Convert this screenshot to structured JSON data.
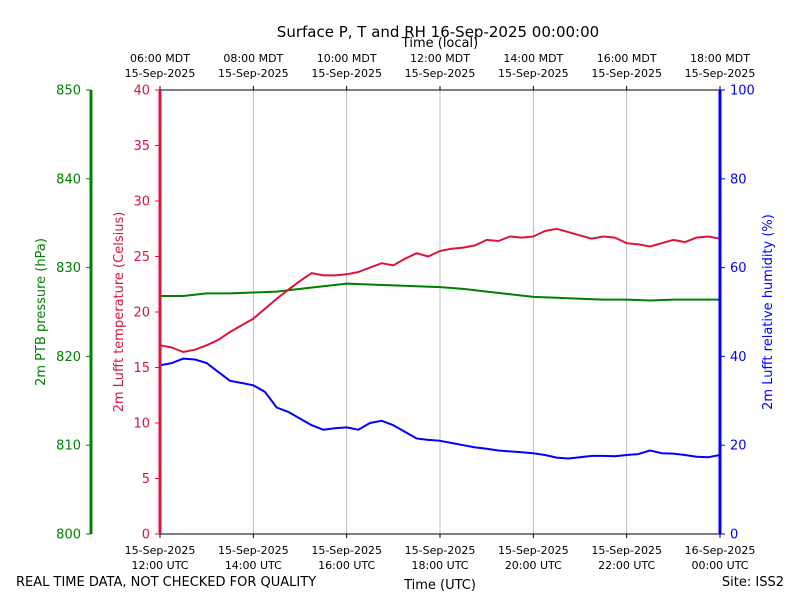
{
  "chart_data": {
    "type": "line",
    "title": "Surface P, T and RH 16-Sep-2025 00:00:00",
    "top_axis_label": "Time (local)",
    "xlabel": "Time (UTC)",
    "x_unit": "hours UTC from 15-Sep-2025 12:00",
    "xlim": [
      0,
      12
    ],
    "bottom_ticks": [
      {
        "x": 0,
        "line1": "15-Sep-2025",
        "line2": "12:00 UTC"
      },
      {
        "x": 2,
        "line1": "15-Sep-2025",
        "line2": "14:00 UTC"
      },
      {
        "x": 4,
        "line1": "15-Sep-2025",
        "line2": "16:00 UTC"
      },
      {
        "x": 6,
        "line1": "15-Sep-2025",
        "line2": "18:00 UTC"
      },
      {
        "x": 8,
        "line1": "15-Sep-2025",
        "line2": "20:00 UTC"
      },
      {
        "x": 10,
        "line1": "15-Sep-2025",
        "line2": "22:00 UTC"
      },
      {
        "x": 12,
        "line1": "16-Sep-2025",
        "line2": "00:00 UTC"
      }
    ],
    "top_ticks": [
      {
        "x": 0,
        "line1": "06:00 MDT",
        "line2": "15-Sep-2025"
      },
      {
        "x": 2,
        "line1": "08:00 MDT",
        "line2": "15-Sep-2025"
      },
      {
        "x": 4,
        "line1": "10:00 MDT",
        "line2": "15-Sep-2025"
      },
      {
        "x": 6,
        "line1": "12:00 MDT",
        "line2": "15-Sep-2025"
      },
      {
        "x": 8,
        "line1": "14:00 MDT",
        "line2": "15-Sep-2025"
      },
      {
        "x": 10,
        "line1": "16:00 MDT",
        "line2": "15-Sep-2025"
      },
      {
        "x": 12,
        "line1": "18:00 MDT",
        "line2": "15-Sep-2025"
      }
    ],
    "vertical_grid": true,
    "axes": {
      "pressure": {
        "label": "2m PTB pressure (hPa)",
        "ylim": [
          800,
          850
        ],
        "ticks": [
          800,
          810,
          820,
          830,
          840,
          850
        ],
        "color": "#008000",
        "position": "far-left"
      },
      "temperature": {
        "label": "2m Lufft temperature (Celsius)",
        "ylim": [
          0,
          40
        ],
        "ticks": [
          0,
          5,
          10,
          15,
          20,
          25,
          30,
          35,
          40
        ],
        "color": "#dc143c",
        "position": "left"
      },
      "humidity": {
        "label": "2m Lufft relative humidity (%)",
        "ylim": [
          0,
          100
        ],
        "ticks": [
          0,
          20,
          40,
          60,
          80,
          100
        ],
        "color": "#0000ff",
        "position": "right"
      }
    },
    "series": [
      {
        "name": "2m PTB pressure",
        "axis": "pressure",
        "color": "#008000",
        "x": [
          0,
          0.5,
          1,
          1.5,
          2,
          2.5,
          3,
          3.5,
          4,
          4.5,
          5,
          5.5,
          6,
          6.5,
          7,
          7.5,
          8,
          8.5,
          9,
          9.5,
          10,
          10.5,
          11,
          11.5,
          12
        ],
        "values": [
          826.8,
          826.8,
          827.1,
          827.1,
          827.2,
          827.3,
          827.6,
          827.9,
          828.2,
          828.1,
          828.0,
          827.9,
          827.8,
          827.6,
          827.3,
          827.0,
          826.7,
          826.6,
          826.5,
          826.4,
          826.4,
          826.3,
          826.4,
          826.4,
          826.4
        ]
      },
      {
        "name": "2m Lufft temperature",
        "axis": "temperature",
        "color": "#dc143c",
        "x": [
          0,
          0.25,
          0.5,
          0.75,
          1,
          1.25,
          1.5,
          1.75,
          2,
          2.25,
          2.5,
          2.75,
          3,
          3.25,
          3.5,
          3.75,
          4,
          4.25,
          4.5,
          4.75,
          5,
          5.25,
          5.5,
          5.75,
          6,
          6.25,
          6.5,
          6.75,
          7,
          7.25,
          7.5,
          7.75,
          8,
          8.25,
          8.5,
          8.75,
          9,
          9.25,
          9.5,
          9.75,
          10,
          10.25,
          10.5,
          10.75,
          11,
          11.25,
          11.5,
          11.75,
          12
        ],
        "values": [
          17.0,
          16.8,
          16.4,
          16.6,
          17.0,
          17.5,
          18.2,
          18.8,
          19.4,
          20.3,
          21.2,
          22.0,
          22.8,
          23.5,
          23.3,
          23.3,
          23.4,
          23.6,
          24.0,
          24.4,
          24.2,
          24.8,
          25.3,
          25.0,
          25.5,
          25.7,
          25.8,
          26.0,
          26.5,
          26.4,
          26.8,
          26.7,
          26.8,
          27.3,
          27.5,
          27.2,
          26.9,
          26.6,
          26.8,
          26.7,
          26.2,
          26.1,
          25.9,
          26.2,
          26.5,
          26.3,
          26.7,
          26.8,
          26.6
        ]
      },
      {
        "name": "2m Lufft relative humidity",
        "axis": "humidity",
        "color": "#0000ff",
        "x": [
          0,
          0.25,
          0.5,
          0.75,
          1,
          1.25,
          1.5,
          1.75,
          2,
          2.25,
          2.5,
          2.75,
          3,
          3.25,
          3.5,
          3.75,
          4,
          4.25,
          4.5,
          4.75,
          5,
          5.25,
          5.5,
          5.75,
          6,
          6.25,
          6.5,
          6.75,
          7,
          7.25,
          7.5,
          7.75,
          8,
          8.25,
          8.5,
          8.75,
          9,
          9.25,
          9.5,
          9.75,
          10,
          10.25,
          10.5,
          10.75,
          11,
          11.25,
          11.5,
          11.75,
          12
        ],
        "values": [
          38.0,
          38.5,
          39.5,
          39.3,
          38.5,
          36.5,
          34.5,
          34.0,
          33.5,
          32.0,
          28.5,
          27.5,
          26.0,
          24.5,
          23.5,
          23.8,
          24.0,
          23.5,
          25.0,
          25.5,
          24.5,
          23.0,
          21.5,
          21.2,
          21.0,
          20.5,
          20.0,
          19.5,
          19.2,
          18.8,
          18.6,
          18.4,
          18.2,
          17.8,
          17.2,
          17.0,
          17.3,
          17.6,
          17.6,
          17.5,
          17.8,
          18.0,
          18.8,
          18.2,
          18.1,
          17.8,
          17.4,
          17.3,
          17.8
        ]
      }
    ]
  },
  "footer": {
    "disclaimer": "REAL TIME DATA, NOT CHECKED FOR QUALITY",
    "site": "Site: ISS2"
  }
}
